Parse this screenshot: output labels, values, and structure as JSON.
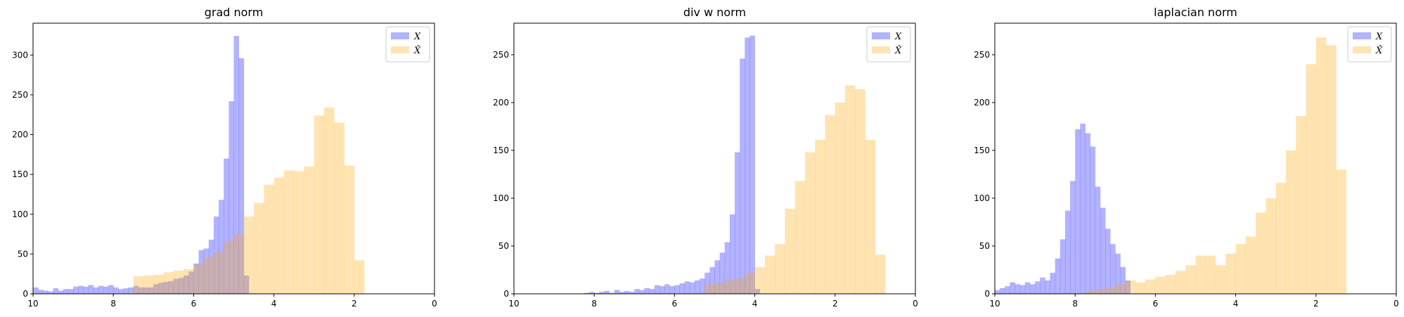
{
  "chart_data": [
    {
      "type": "histogram",
      "title": "grad norm",
      "xlabel": "",
      "ylabel": "",
      "xlim": [
        10,
        0
      ],
      "ylim": [
        0,
        340
      ],
      "x_ticks": [
        10,
        8,
        6,
        4,
        2,
        0
      ],
      "y_ticks": [
        0,
        50,
        100,
        150,
        200,
        250,
        300
      ],
      "legend": {
        "position": "top-right"
      },
      "series": [
        {
          "name": "X",
          "color": "#0000ff",
          "alpha": 0.3,
          "bin_width": 0.125,
          "x_start": 10,
          "counts": [
            8,
            5,
            4,
            3,
            7,
            4,
            6,
            6,
            9,
            10,
            9,
            11,
            8,
            10,
            9,
            11,
            8,
            6,
            7,
            8,
            10,
            8,
            8,
            8,
            12,
            14,
            15,
            16,
            19,
            20,
            23,
            28,
            38,
            55,
            57,
            68,
            97,
            118,
            170,
            242,
            324,
            296,
            23
          ]
        },
        {
          "name": "X̂",
          "color": "#ffa500",
          "alpha": 0.3,
          "bin_width": 0.25,
          "x_start": 7.5,
          "counts": [
            22,
            23,
            24,
            27,
            29,
            31,
            37,
            46,
            52,
            66,
            75,
            97,
            114,
            137,
            146,
            155,
            154,
            160,
            224,
            234,
            215,
            161,
            42
          ]
        }
      ]
    },
    {
      "type": "histogram",
      "title": "div w norm",
      "xlabel": "",
      "ylabel": "",
      "xlim": [
        10,
        0
      ],
      "ylim": [
        0,
        283
      ],
      "x_ticks": [
        10,
        8,
        6,
        4,
        2,
        0
      ],
      "y_ticks": [
        0,
        50,
        100,
        150,
        200,
        250
      ],
      "legend": {
        "position": "top-right"
      },
      "series": [
        {
          "name": "X",
          "color": "#0000ff",
          "alpha": 0.3,
          "bin_width": 0.125,
          "x_start": 8.25,
          "counts": [
            1,
            2,
            1,
            2,
            3,
            1,
            4,
            2,
            3,
            2,
            5,
            4,
            6,
            5,
            9,
            8,
            10,
            8,
            9,
            11,
            13,
            12,
            14,
            16,
            22,
            28,
            35,
            43,
            54,
            83,
            148,
            246,
            268,
            270,
            5
          ]
        },
        {
          "name": "X̂",
          "color": "#ffa500",
          "alpha": 0.3,
          "bin_width": 0.25,
          "x_start": 5.25,
          "counts": [
            10,
            11,
            14,
            16,
            22,
            28,
            40,
            52,
            89,
            118,
            148,
            161,
            187,
            200,
            218,
            214,
            161,
            41
          ]
        }
      ]
    },
    {
      "type": "histogram",
      "title": "laplacian norm",
      "xlabel": "",
      "ylabel": "",
      "xlim": [
        10,
        0
      ],
      "ylim": [
        0,
        283
      ],
      "x_ticks": [
        10,
        8,
        6,
        4,
        2,
        0
      ],
      "y_ticks": [
        0,
        50,
        100,
        150,
        200,
        250
      ],
      "legend": {
        "position": "top-right"
      },
      "series": [
        {
          "name": "X",
          "color": "#0000ff",
          "alpha": 0.3,
          "bin_width": 0.125,
          "x_start": 10,
          "counts": [
            4,
            6,
            8,
            12,
            10,
            9,
            12,
            10,
            13,
            17,
            14,
            22,
            37,
            57,
            87,
            118,
            172,
            178,
            168,
            154,
            112,
            90,
            68,
            52,
            42,
            28,
            14
          ]
        },
        {
          "name": "X̂",
          "color": "#ffa500",
          "alpha": 0.3,
          "bin_width": 0.25,
          "x_start": 7.75,
          "counts": [
            3,
            5,
            6,
            10,
            14,
            12,
            15,
            18,
            20,
            24,
            30,
            40,
            40,
            30,
            42,
            52,
            60,
            85,
            100,
            116,
            150,
            186,
            240,
            268,
            260,
            130
          ]
        }
      ]
    }
  ]
}
